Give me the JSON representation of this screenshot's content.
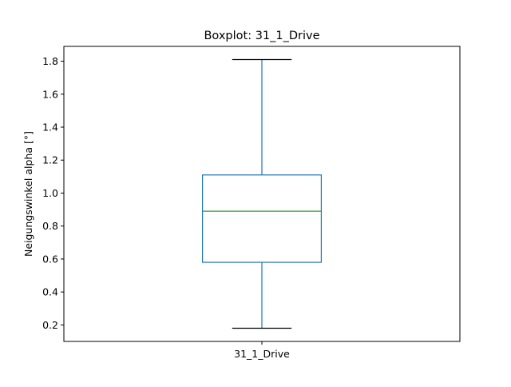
{
  "chart_data": {
    "type": "boxplot",
    "title": "Boxplot: 31_1_Drive",
    "xlabel": "",
    "ylabel": "Neigungswinkel alpha [°]",
    "categories": [
      "31_1_Drive"
    ],
    "series": [
      {
        "whisker_low": 0.18,
        "q1": 0.58,
        "median": 0.89,
        "q3": 1.11,
        "whisker_high": 1.81
      }
    ],
    "ylim": [
      0.1,
      1.89
    ],
    "yticks": [
      0.2,
      0.4,
      0.6,
      0.8,
      1.0,
      1.2,
      1.4,
      1.6,
      1.8
    ],
    "ytick_labels": [
      "0.2",
      "0.4",
      "0.6",
      "0.8",
      "1.0",
      "1.2",
      "1.4",
      "1.6",
      "1.8"
    ],
    "grid": false,
    "colors": {
      "box": "#1f77b4",
      "median": "#2ca02c",
      "caps": "#000000"
    }
  }
}
